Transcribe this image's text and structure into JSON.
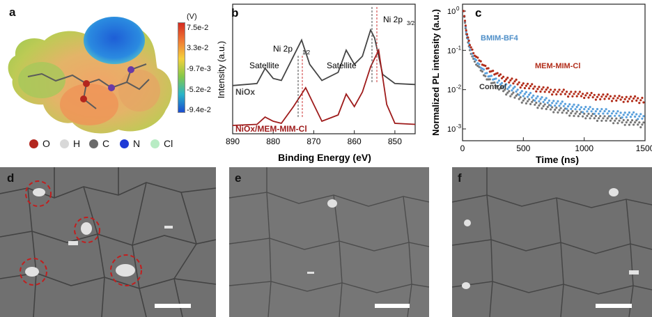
{
  "panels": {
    "a": {
      "label": "a",
      "colorbar_unit": "(V)",
      "colorbar_ticks": [
        "7.5e-2",
        "3.3e-2",
        "-9.7e-3",
        "-5.2e-2",
        "-9.4e-2"
      ],
      "legend": [
        {
          "label": "O",
          "color": "#b3261e"
        },
        {
          "label": "H",
          "color": "#d8d8d8"
        },
        {
          "label": "C",
          "color": "#6a6a6a"
        },
        {
          "label": "N",
          "color": "#1f3ad6"
        },
        {
          "label": "Cl",
          "color": "#b8ecc4"
        }
      ]
    },
    "b": {
      "label": "b"
    },
    "c": {
      "label": "c"
    },
    "d": {
      "label": "d"
    },
    "e": {
      "label": "e"
    },
    "f": {
      "label": "f"
    }
  },
  "chart_data": [
    {
      "type": "line",
      "panel": "b",
      "xlabel": "Binding Energy (eV)",
      "ylabel": "Intensity (a.u.)",
      "xlim": [
        890,
        845
      ],
      "xticks": [
        "890",
        "880",
        "870",
        "860",
        "850"
      ],
      "annotations": [
        "Satellite",
        "Ni 2p",
        "1/2",
        "Satellite",
        "Ni 2p",
        "3/2"
      ],
      "series": [
        {
          "name": "NiOx",
          "color": "#444444",
          "x": [
            890,
            884,
            882,
            880,
            878,
            875,
            873,
            871,
            868,
            864,
            862,
            860,
            858,
            856,
            855,
            853,
            850,
            845
          ],
          "y": [
            0.45,
            0.47,
            0.62,
            0.52,
            0.5,
            0.74,
            0.9,
            0.66,
            0.5,
            0.58,
            0.8,
            0.66,
            0.74,
            1.0,
            0.92,
            0.56,
            0.47,
            0.46
          ]
        },
        {
          "name": "NiOx/MEM-MIM-Cl",
          "color": "#9e1b1b",
          "x": [
            890,
            884,
            882,
            880,
            878,
            875,
            872,
            870,
            868,
            864,
            862,
            860,
            858,
            856,
            854,
            852,
            850,
            845
          ],
          "y": [
            0.04,
            0.05,
            0.12,
            0.08,
            0.06,
            0.22,
            0.4,
            0.24,
            0.08,
            0.14,
            0.34,
            0.22,
            0.36,
            0.6,
            0.76,
            0.24,
            0.06,
            0.05
          ]
        }
      ]
    },
    {
      "type": "scatter",
      "panel": "c",
      "xlabel": "Time (ns)",
      "ylabel": "Normalized PL intensity (a.u.)",
      "xlim": [
        0,
        1500
      ],
      "ylim": [
        0.0005,
        1.5
      ],
      "yscale": "log",
      "xticks": [
        "0",
        "500",
        "1000",
        "1500"
      ],
      "yticks": [
        "10",
        "10",
        "10",
        "10"
      ],
      "ytick_exponents": [
        "0",
        "-1",
        "-2",
        "-3"
      ],
      "series": [
        {
          "name": "BMIM-BF4",
          "color": "#5aa0dc",
          "x": [
            10,
            30,
            60,
            100,
            200,
            300,
            500,
            700,
            1000,
            1300,
            1500
          ],
          "y": [
            1.0,
            0.3,
            0.12,
            0.06,
            0.025,
            0.015,
            0.008,
            0.005,
            0.0032,
            0.0024,
            0.0021
          ]
        },
        {
          "name": "MEM-MIM-Cl",
          "color": "#b22d1a",
          "x": [
            10,
            30,
            60,
            100,
            200,
            300,
            500,
            700,
            1000,
            1300,
            1500
          ],
          "y": [
            1.0,
            0.32,
            0.14,
            0.075,
            0.035,
            0.022,
            0.013,
            0.0095,
            0.0072,
            0.006,
            0.0055
          ]
        },
        {
          "name": "Control",
          "color": "#777777",
          "x": [
            10,
            30,
            60,
            100,
            200,
            300,
            500,
            700,
            1000,
            1300,
            1500
          ],
          "y": [
            1.0,
            0.26,
            0.1,
            0.05,
            0.02,
            0.011,
            0.0055,
            0.0035,
            0.0022,
            0.0016,
            0.0013
          ]
        }
      ]
    }
  ]
}
